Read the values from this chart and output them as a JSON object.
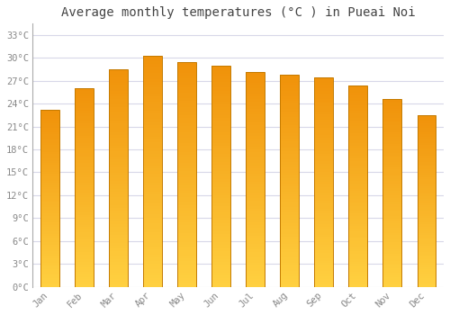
{
  "months": [
    "Jan",
    "Feb",
    "Mar",
    "Apr",
    "May",
    "Jun",
    "Jul",
    "Aug",
    "Sep",
    "Oct",
    "Nov",
    "Dec"
  ],
  "values": [
    23.2,
    26.0,
    28.5,
    30.3,
    29.5,
    29.0,
    28.2,
    27.8,
    27.4,
    26.4,
    24.6,
    22.5
  ],
  "title": "Average monthly temperatures (°C ) in Pueai Noi",
  "bar_color_bottom": "#FFD040",
  "bar_color_top": "#F0920A",
  "bar_edge_color": "#C47A00",
  "background_color": "#ffffff",
  "grid_color": "#d8d8e8",
  "ytick_labels": [
    "0°C",
    "3°C",
    "6°C",
    "9°C",
    "12°C",
    "15°C",
    "18°C",
    "21°C",
    "24°C",
    "27°C",
    "30°C",
    "33°C"
  ],
  "ytick_values": [
    0,
    3,
    6,
    9,
    12,
    15,
    18,
    21,
    24,
    27,
    30,
    33
  ],
  "ylim": [
    0,
    34.5
  ],
  "title_fontsize": 10,
  "tick_fontsize": 7.5,
  "tick_color": "#888888",
  "bar_width": 0.55,
  "n_grad": 80
}
